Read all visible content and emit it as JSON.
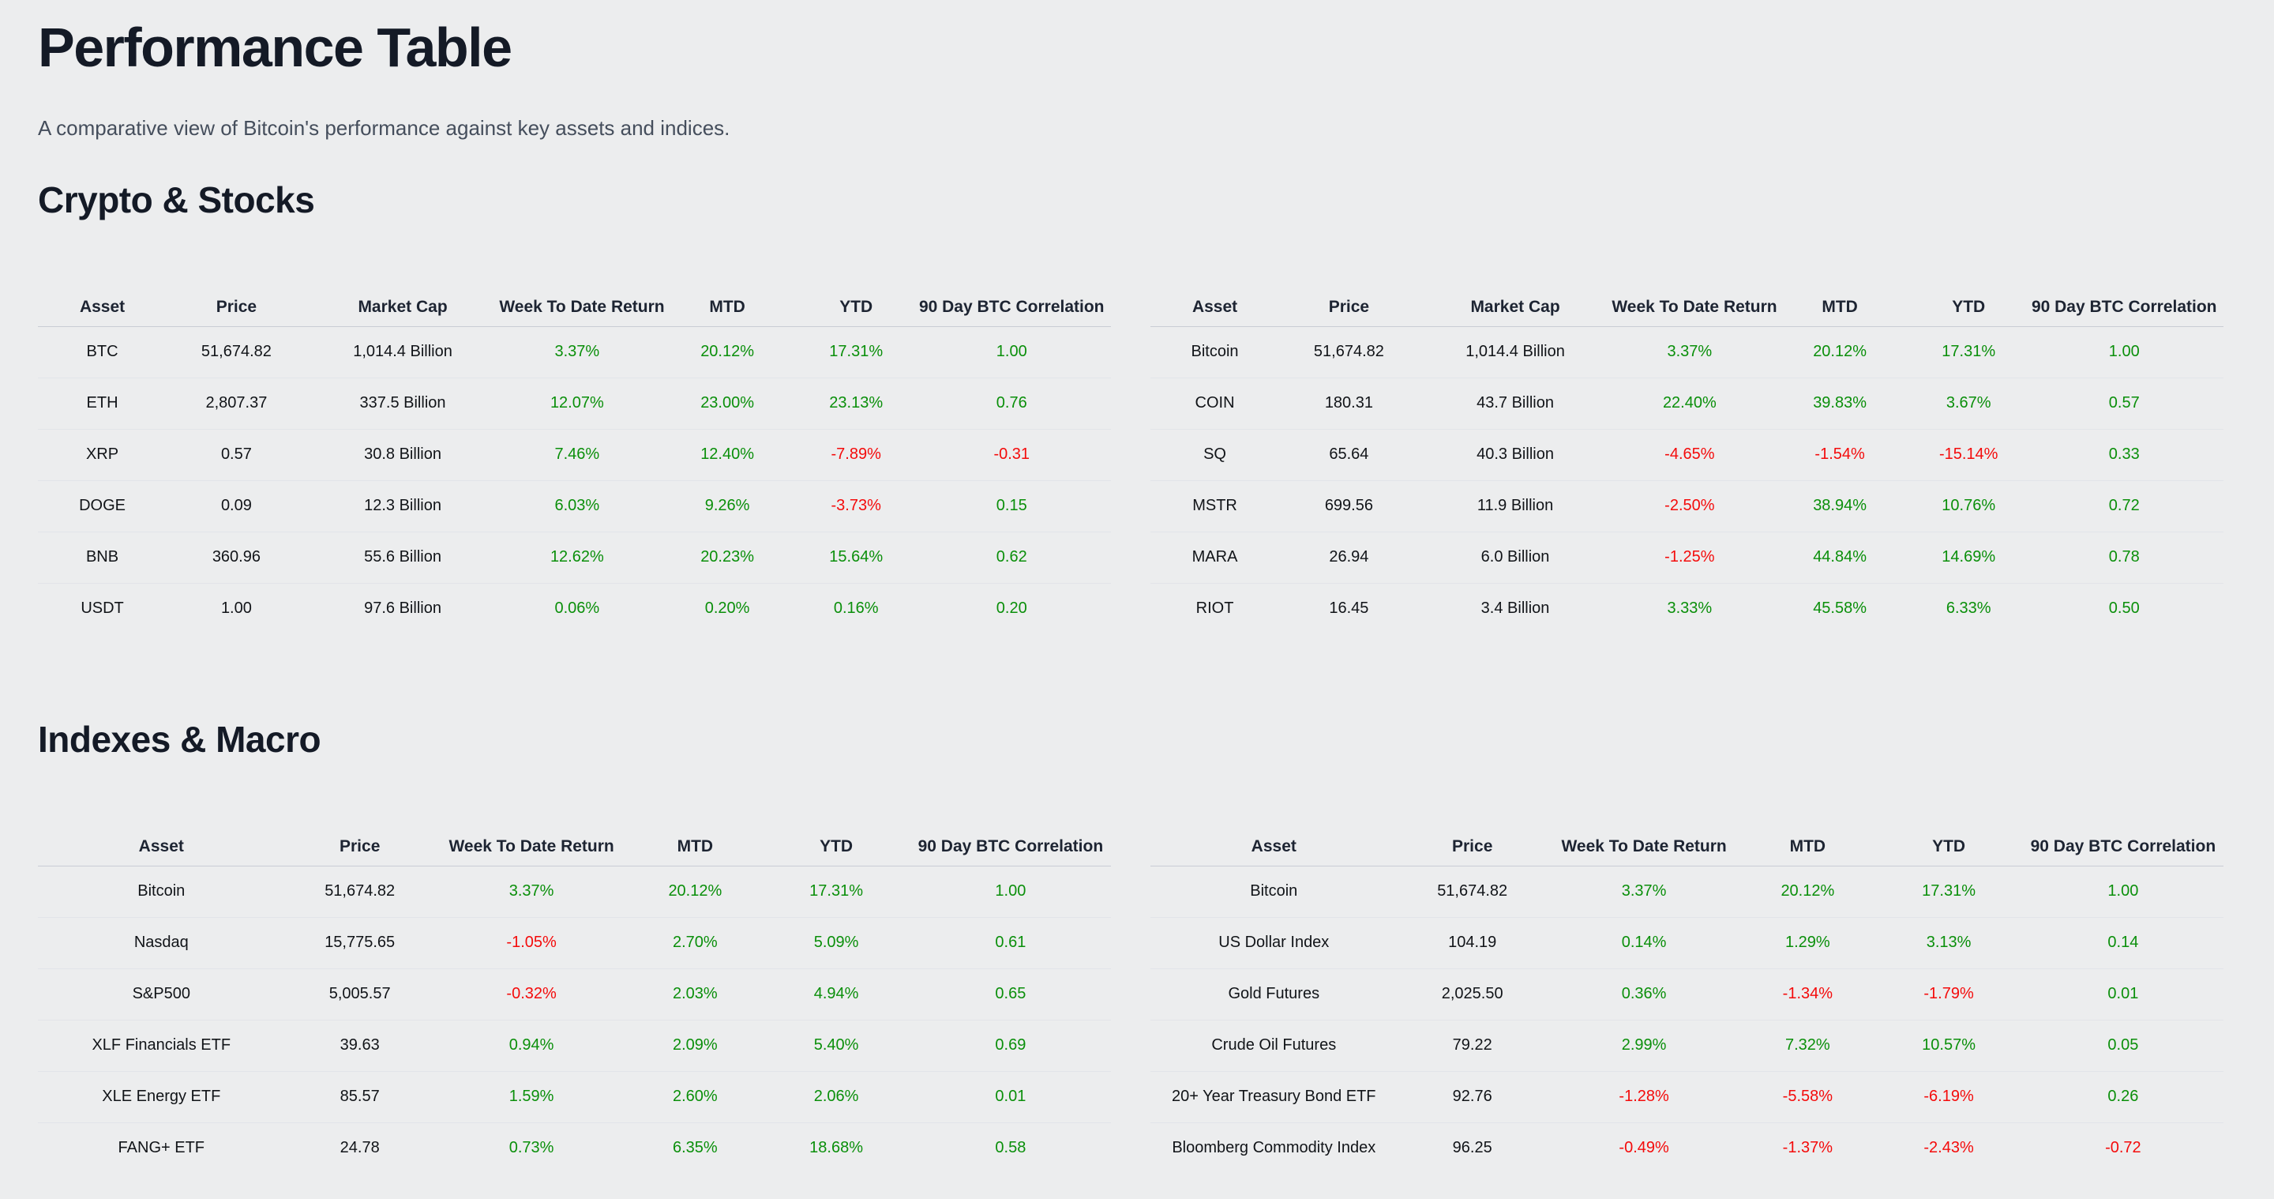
{
  "header": {
    "title": "Performance Table",
    "subtitle": "A comparative view of Bitcoin's performance against key assets and indices."
  },
  "colors": {
    "positive": "#0A8F0A",
    "negative": "#F40B0B",
    "neutral_text": "#111418",
    "background": "#ECEDEE"
  },
  "sections": [
    {
      "heading": "Crypto & Stocks",
      "table_indexes": [
        0,
        1
      ]
    },
    {
      "heading": "Indexes & Macro",
      "table_indexes": [
        2,
        3
      ]
    }
  ],
  "chart_data": [
    {
      "type": "table",
      "title": "Crypto & Stocks — crypto assets",
      "columns": [
        "Asset",
        "Price",
        "Market Cap",
        "Week To Date Return",
        "MTD",
        "YTD",
        "90 Day BTC Correlation"
      ],
      "rows": [
        [
          "BTC",
          "51,674.82",
          "1,014.4 Billion",
          "3.37%",
          "20.12%",
          "17.31%",
          "1.00"
        ],
        [
          "ETH",
          "2,807.37",
          "337.5 Billion",
          "12.07%",
          "23.00%",
          "23.13%",
          "0.76"
        ],
        [
          "XRP",
          "0.57",
          "30.8 Billion",
          "7.46%",
          "12.40%",
          "-7.89%",
          "-0.31"
        ],
        [
          "DOGE",
          "0.09",
          "12.3 Billion",
          "6.03%",
          "9.26%",
          "-3.73%",
          "0.15"
        ],
        [
          "BNB",
          "360.96",
          "55.6 Billion",
          "12.62%",
          "20.23%",
          "15.64%",
          "0.62"
        ],
        [
          "USDT",
          "1.00",
          "97.6 Billion",
          "0.06%",
          "0.20%",
          "0.16%",
          "0.20"
        ]
      ],
      "row_styles": [
        [
          "k",
          "k",
          "k",
          "g",
          "g",
          "g",
          "g"
        ],
        [
          "k",
          "k",
          "k",
          "g",
          "g",
          "g",
          "g"
        ],
        [
          "k",
          "k",
          "k",
          "g",
          "g",
          "r",
          "r"
        ],
        [
          "k",
          "k",
          "k",
          "g",
          "g",
          "r",
          "g"
        ],
        [
          "k",
          "k",
          "k",
          "g",
          "g",
          "g",
          "g"
        ],
        [
          "k",
          "k",
          "k",
          "g",
          "g",
          "g",
          "g"
        ]
      ]
    },
    {
      "type": "table",
      "title": "Crypto & Stocks — crypto-related stocks",
      "columns": [
        "Asset",
        "Price",
        "Market Cap",
        "Week To Date Return",
        "MTD",
        "YTD",
        "90 Day BTC Correlation"
      ],
      "rows": [
        [
          "Bitcoin",
          "51,674.82",
          "1,014.4 Billion",
          "3.37%",
          "20.12%",
          "17.31%",
          "1.00"
        ],
        [
          "COIN",
          "180.31",
          "43.7 Billion",
          "22.40%",
          "39.83%",
          "3.67%",
          "0.57"
        ],
        [
          "SQ",
          "65.64",
          "40.3 Billion",
          "-4.65%",
          "-1.54%",
          "-15.14%",
          "0.33"
        ],
        [
          "MSTR",
          "699.56",
          "11.9 Billion",
          "-2.50%",
          "38.94%",
          "10.76%",
          "0.72"
        ],
        [
          "MARA",
          "26.94",
          "6.0 Billion",
          "-1.25%",
          "44.84%",
          "14.69%",
          "0.78"
        ],
        [
          "RIOT",
          "16.45",
          "3.4 Billion",
          "3.33%",
          "45.58%",
          "6.33%",
          "0.50"
        ]
      ],
      "row_styles": [
        [
          "k",
          "k",
          "k",
          "g",
          "g",
          "g",
          "g"
        ],
        [
          "k",
          "k",
          "k",
          "g",
          "g",
          "g",
          "g"
        ],
        [
          "k",
          "k",
          "k",
          "r",
          "r",
          "r",
          "g"
        ],
        [
          "k",
          "k",
          "k",
          "r",
          "g",
          "g",
          "g"
        ],
        [
          "k",
          "k",
          "k",
          "r",
          "g",
          "g",
          "g"
        ],
        [
          "k",
          "k",
          "k",
          "g",
          "g",
          "g",
          "g"
        ]
      ]
    },
    {
      "type": "table",
      "title": "Indexes & Macro — equity indexes",
      "columns": [
        "Asset",
        "Price",
        "Week To Date Return",
        "MTD",
        "YTD",
        "90 Day BTC Correlation"
      ],
      "rows": [
        [
          "Bitcoin",
          "51,674.82",
          "3.37%",
          "20.12%",
          "17.31%",
          "1.00"
        ],
        [
          "Nasdaq",
          "15,775.65",
          "-1.05%",
          "2.70%",
          "5.09%",
          "0.61"
        ],
        [
          "S&P500",
          "5,005.57",
          "-0.32%",
          "2.03%",
          "4.94%",
          "0.65"
        ],
        [
          "XLF Financials ETF",
          "39.63",
          "0.94%",
          "2.09%",
          "5.40%",
          "0.69"
        ],
        [
          "XLE Energy ETF",
          "85.57",
          "1.59%",
          "2.60%",
          "2.06%",
          "0.01"
        ],
        [
          "FANG+ ETF",
          "24.78",
          "0.73%",
          "6.35%",
          "18.68%",
          "0.58"
        ]
      ],
      "row_styles": [
        [
          "k",
          "k",
          "g",
          "g",
          "g",
          "g"
        ],
        [
          "k",
          "k",
          "r",
          "g",
          "g",
          "g"
        ],
        [
          "k",
          "k",
          "r",
          "g",
          "g",
          "g"
        ],
        [
          "k",
          "k",
          "g",
          "g",
          "g",
          "g"
        ],
        [
          "k",
          "k",
          "g",
          "g",
          "g",
          "g"
        ],
        [
          "k",
          "k",
          "g",
          "g",
          "g",
          "g"
        ]
      ]
    },
    {
      "type": "table",
      "title": "Indexes & Macro — macro assets",
      "columns": [
        "Asset",
        "Price",
        "Week To Date Return",
        "MTD",
        "YTD",
        "90 Day BTC Correlation"
      ],
      "rows": [
        [
          "Bitcoin",
          "51,674.82",
          "3.37%",
          "20.12%",
          "17.31%",
          "1.00"
        ],
        [
          "US Dollar Index",
          "104.19",
          "0.14%",
          "1.29%",
          "3.13%",
          "0.14"
        ],
        [
          "Gold Futures",
          "2,025.50",
          "0.36%",
          "-1.34%",
          "-1.79%",
          "0.01"
        ],
        [
          "Crude Oil Futures",
          "79.22",
          "2.99%",
          "7.32%",
          "10.57%",
          "0.05"
        ],
        [
          "20+ Year Treasury Bond ETF",
          "92.76",
          "-1.28%",
          "-5.58%",
          "-6.19%",
          "0.26"
        ],
        [
          "Bloomberg Commodity Index",
          "96.25",
          "-0.49%",
          "-1.37%",
          "-2.43%",
          "-0.72"
        ]
      ],
      "row_styles": [
        [
          "k",
          "k",
          "g",
          "g",
          "g",
          "g"
        ],
        [
          "k",
          "k",
          "g",
          "g",
          "g",
          "g"
        ],
        [
          "k",
          "k",
          "g",
          "r",
          "r",
          "g"
        ],
        [
          "k",
          "k",
          "g",
          "g",
          "g",
          "g"
        ],
        [
          "k",
          "k",
          "r",
          "r",
          "r",
          "g"
        ],
        [
          "k",
          "k",
          "r",
          "r",
          "r",
          "r"
        ]
      ]
    }
  ]
}
